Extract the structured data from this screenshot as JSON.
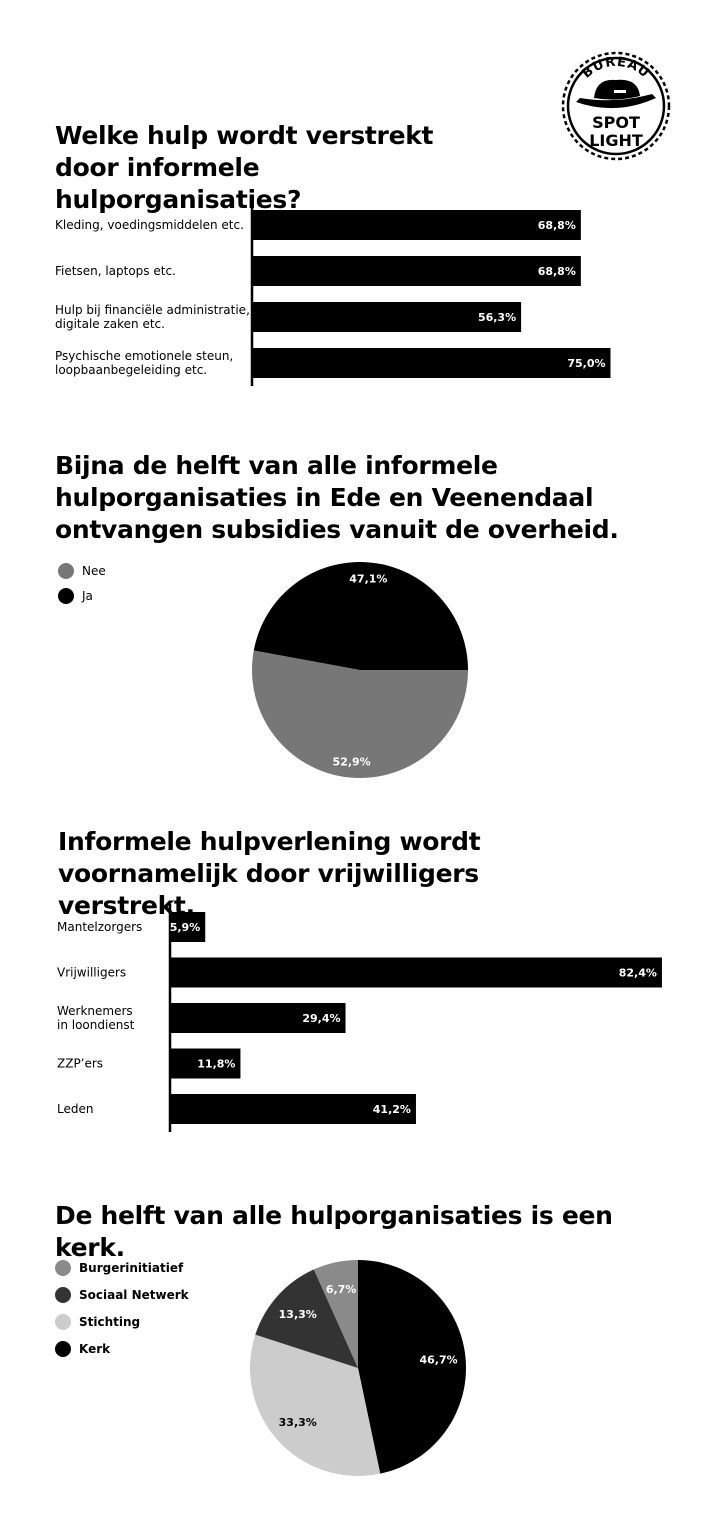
{
  "logo": {
    "top_text": "BUREAU",
    "line1": "SPOT",
    "line2": "LIGHT"
  },
  "colors": {
    "black": "#000000",
    "dark_gray": "#333333",
    "gray": "#777777",
    "mid_gray": "#8a8a8a",
    "light_gray": "#cccccc",
    "white": "#ffffff"
  },
  "chart_data": [
    {
      "type": "bar",
      "orientation": "horizontal",
      "title": "Welke hulp wordt verstrekt door informele hulporganisaties?",
      "categories": [
        [
          "Kleding, voedingsmiddelen etc."
        ],
        [
          "Fietsen, laptops etc."
        ],
        [
          "Hulp bij financiële administratie,",
          "digitale zaken etc."
        ],
        [
          "Psychische emotionele steun,",
          "loopbaanbegeleiding etc."
        ]
      ],
      "values": [
        68.8,
        68.8,
        56.3,
        75.0
      ],
      "value_labels": [
        "68,8%",
        "68,8%",
        "56,3%",
        "75,0%"
      ],
      "xlim": [
        0,
        100
      ],
      "grid": false,
      "color": "#000000"
    },
    {
      "type": "pie",
      "title": "Bijna de helft van alle informele hulporganisaties in Ede en Veenendaal ontvangen subsidies vanuit de overheid.",
      "slices": [
        {
          "label": "Nee",
          "value": 52.9,
          "display": "52,9%",
          "color": "#777777",
          "text_color": "#ffffff"
        },
        {
          "label": "Ja",
          "value": 47.1,
          "display": "47,1%",
          "color": "#000000",
          "text_color": "#ffffff"
        }
      ],
      "legend": [
        "Nee",
        "Ja"
      ],
      "legend_position": "top-left"
    },
    {
      "type": "bar",
      "orientation": "horizontal",
      "title": "Informele hulpverlening wordt voornamelijk door vrijwilligers verstrekt.",
      "categories": [
        [
          "Mantelzorgers"
        ],
        [
          "Vrijwilligers"
        ],
        [
          "Werknemers",
          "in loondienst"
        ],
        [
          "ZZP’ers"
        ],
        [
          "Leden"
        ]
      ],
      "values": [
        5.9,
        82.4,
        29.4,
        11.8,
        41.2
      ],
      "value_labels": [
        "5,9%",
        "82,4%",
        "29,4%",
        "11,8%",
        "41,2%"
      ],
      "xlim": [
        0,
        100
      ],
      "grid": false,
      "color": "#000000"
    },
    {
      "type": "pie",
      "title": "De helft van alle hulporganisaties is een kerk.",
      "slices": [
        {
          "label": "Kerk",
          "value": 46.7,
          "display": "46,7%",
          "color": "#000000",
          "text_color": "#ffffff"
        },
        {
          "label": "Stichting",
          "value": 33.3,
          "display": "33,3%",
          "color": "#cccccc",
          "text_color": "#000000"
        },
        {
          "label": "Sociaal Netwerk",
          "value": 13.3,
          "display": "13,3%",
          "color": "#333333",
          "text_color": "#ffffff"
        },
        {
          "label": "Burgerinitiatief",
          "value": 6.7,
          "display": "6,7%",
          "color": "#8a8a8a",
          "text_color": "#ffffff"
        }
      ],
      "legend": [
        "Burgerinitiatief",
        "Sociaal Netwerk",
        "Stichting",
        "Kerk"
      ],
      "legend_position": "top-left"
    }
  ]
}
